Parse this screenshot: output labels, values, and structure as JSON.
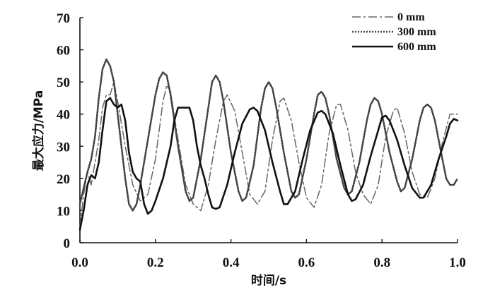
{
  "chart_data": {
    "type": "line",
    "xlabel": "时间/s",
    "ylabel": "最大应力/MPa",
    "xlim": [
      0,
      1.0
    ],
    "ylim": [
      0,
      70
    ],
    "xticks": [
      "0.0",
      "0.2",
      "0.4",
      "0.6",
      "0.8",
      "1.0"
    ],
    "yticks": [
      "0",
      "10",
      "20",
      "30",
      "40",
      "50",
      "60",
      "70"
    ],
    "grid": false,
    "legend_position": "top-right",
    "series": [
      {
        "name": "0 mm",
        "style": "dashdot",
        "color": "#666666",
        "points": [
          [
            0.0,
            5
          ],
          [
            0.01,
            15
          ],
          [
            0.02,
            22
          ],
          [
            0.03,
            18
          ],
          [
            0.04,
            25
          ],
          [
            0.05,
            32
          ],
          [
            0.06,
            42
          ],
          [
            0.07,
            46
          ],
          [
            0.08,
            46
          ],
          [
            0.09,
            50
          ],
          [
            0.1,
            44
          ],
          [
            0.12,
            30
          ],
          [
            0.14,
            18
          ],
          [
            0.16,
            13
          ],
          [
            0.18,
            15
          ],
          [
            0.2,
            26
          ],
          [
            0.22,
            44
          ],
          [
            0.23,
            49
          ],
          [
            0.24,
            47
          ],
          [
            0.26,
            32
          ],
          [
            0.28,
            18
          ],
          [
            0.3,
            12
          ],
          [
            0.32,
            10
          ],
          [
            0.34,
            18
          ],
          [
            0.36,
            32
          ],
          [
            0.38,
            44
          ],
          [
            0.39,
            46
          ],
          [
            0.41,
            41
          ],
          [
            0.43,
            28
          ],
          [
            0.45,
            15
          ],
          [
            0.47,
            12
          ],
          [
            0.49,
            16
          ],
          [
            0.51,
            32
          ],
          [
            0.53,
            44
          ],
          [
            0.54,
            45
          ],
          [
            0.56,
            38
          ],
          [
            0.58,
            25
          ],
          [
            0.6,
            14
          ],
          [
            0.62,
            11
          ],
          [
            0.64,
            18
          ],
          [
            0.66,
            34
          ],
          [
            0.68,
            43
          ],
          [
            0.69,
            43
          ],
          [
            0.71,
            35
          ],
          [
            0.73,
            22
          ],
          [
            0.75,
            15
          ],
          [
            0.77,
            12
          ],
          [
            0.79,
            18
          ],
          [
            0.81,
            33
          ],
          [
            0.83,
            41
          ],
          [
            0.84,
            42
          ],
          [
            0.86,
            34
          ],
          [
            0.88,
            22
          ],
          [
            0.9,
            15
          ],
          [
            0.92,
            14
          ],
          [
            0.94,
            20
          ],
          [
            0.96,
            31
          ],
          [
            0.98,
            40
          ],
          [
            1.0,
            40
          ]
        ]
      },
      {
        "name": "300 mm",
        "style": "dotted",
        "color": "#444444",
        "points": [
          [
            0.0,
            12
          ],
          [
            0.01,
            17
          ],
          [
            0.02,
            22
          ],
          [
            0.03,
            26
          ],
          [
            0.04,
            33
          ],
          [
            0.05,
            45
          ],
          [
            0.06,
            54
          ],
          [
            0.07,
            57
          ],
          [
            0.08,
            55
          ],
          [
            0.09,
            50
          ],
          [
            0.1,
            40
          ],
          [
            0.11,
            30
          ],
          [
            0.12,
            20
          ],
          [
            0.13,
            12
          ],
          [
            0.14,
            10
          ],
          [
            0.15,
            12
          ],
          [
            0.16,
            18
          ],
          [
            0.18,
            32
          ],
          [
            0.2,
            46
          ],
          [
            0.21,
            51
          ],
          [
            0.22,
            53
          ],
          [
            0.23,
            52
          ],
          [
            0.24,
            46
          ],
          [
            0.26,
            30
          ],
          [
            0.28,
            16
          ],
          [
            0.29,
            13
          ],
          [
            0.3,
            14
          ],
          [
            0.32,
            26
          ],
          [
            0.34,
            42
          ],
          [
            0.35,
            50
          ],
          [
            0.36,
            52
          ],
          [
            0.37,
            50
          ],
          [
            0.38,
            44
          ],
          [
            0.4,
            28
          ],
          [
            0.42,
            16
          ],
          [
            0.43,
            13
          ],
          [
            0.44,
            14
          ],
          [
            0.46,
            24
          ],
          [
            0.48,
            42
          ],
          [
            0.49,
            48
          ],
          [
            0.5,
            50
          ],
          [
            0.51,
            48
          ],
          [
            0.52,
            42
          ],
          [
            0.54,
            28
          ],
          [
            0.56,
            16
          ],
          [
            0.57,
            14
          ],
          [
            0.58,
            15
          ],
          [
            0.6,
            26
          ],
          [
            0.62,
            40
          ],
          [
            0.63,
            46
          ],
          [
            0.64,
            47
          ],
          [
            0.65,
            45
          ],
          [
            0.66,
            40
          ],
          [
            0.68,
            26
          ],
          [
            0.7,
            17
          ],
          [
            0.71,
            15
          ],
          [
            0.72,
            16
          ],
          [
            0.74,
            25
          ],
          [
            0.76,
            38
          ],
          [
            0.77,
            43
          ],
          [
            0.78,
            45
          ],
          [
            0.79,
            44
          ],
          [
            0.8,
            40
          ],
          [
            0.82,
            28
          ],
          [
            0.84,
            19
          ],
          [
            0.85,
            16
          ],
          [
            0.86,
            17
          ],
          [
            0.88,
            26
          ],
          [
            0.9,
            38
          ],
          [
            0.91,
            42
          ],
          [
            0.92,
            43
          ],
          [
            0.93,
            42
          ],
          [
            0.94,
            38
          ],
          [
            0.96,
            26
          ],
          [
            0.97,
            20
          ],
          [
            0.98,
            18
          ],
          [
            0.99,
            18
          ],
          [
            1.0,
            20
          ]
        ]
      },
      {
        "name": "600 mm",
        "style": "solid",
        "color": "#111111",
        "points": [
          [
            0.0,
            4
          ],
          [
            0.01,
            10
          ],
          [
            0.02,
            18
          ],
          [
            0.03,
            21
          ],
          [
            0.04,
            20
          ],
          [
            0.05,
            25
          ],
          [
            0.06,
            35
          ],
          [
            0.07,
            44
          ],
          [
            0.08,
            45
          ],
          [
            0.09,
            43
          ],
          [
            0.1,
            42
          ],
          [
            0.11,
            43
          ],
          [
            0.12,
            38
          ],
          [
            0.13,
            28
          ],
          [
            0.14,
            22
          ],
          [
            0.15,
            20
          ],
          [
            0.16,
            19
          ],
          [
            0.17,
            12
          ],
          [
            0.18,
            9
          ],
          [
            0.19,
            10
          ],
          [
            0.2,
            13
          ],
          [
            0.22,
            20
          ],
          [
            0.24,
            30
          ],
          [
            0.25,
            38
          ],
          [
            0.26,
            42
          ],
          [
            0.27,
            42
          ],
          [
            0.28,
            42
          ],
          [
            0.29,
            42
          ],
          [
            0.3,
            38
          ],
          [
            0.31,
            30
          ],
          [
            0.32,
            24
          ],
          [
            0.33,
            20
          ],
          [
            0.34,
            15
          ],
          [
            0.35,
            11
          ],
          [
            0.36,
            10.5
          ],
          [
            0.37,
            11
          ],
          [
            0.39,
            18
          ],
          [
            0.41,
            28
          ],
          [
            0.43,
            37
          ],
          [
            0.45,
            41.5
          ],
          [
            0.46,
            42
          ],
          [
            0.47,
            41
          ],
          [
            0.49,
            35
          ],
          [
            0.51,
            25
          ],
          [
            0.53,
            16
          ],
          [
            0.54,
            12
          ],
          [
            0.55,
            12
          ],
          [
            0.57,
            16
          ],
          [
            0.59,
            26
          ],
          [
            0.61,
            35
          ],
          [
            0.63,
            40.5
          ],
          [
            0.64,
            41
          ],
          [
            0.65,
            40
          ],
          [
            0.67,
            34
          ],
          [
            0.69,
            24
          ],
          [
            0.71,
            15
          ],
          [
            0.72,
            13
          ],
          [
            0.73,
            13.5
          ],
          [
            0.75,
            18
          ],
          [
            0.77,
            27
          ],
          [
            0.79,
            35
          ],
          [
            0.8,
            39
          ],
          [
            0.81,
            39.5
          ],
          [
            0.82,
            38
          ],
          [
            0.84,
            32
          ],
          [
            0.86,
            24
          ],
          [
            0.88,
            17
          ],
          [
            0.9,
            14
          ],
          [
            0.91,
            14
          ],
          [
            0.93,
            18
          ],
          [
            0.95,
            26
          ],
          [
            0.97,
            33
          ],
          [
            0.98,
            37
          ],
          [
            0.99,
            38.5
          ],
          [
            1.0,
            38
          ]
        ]
      }
    ]
  }
}
